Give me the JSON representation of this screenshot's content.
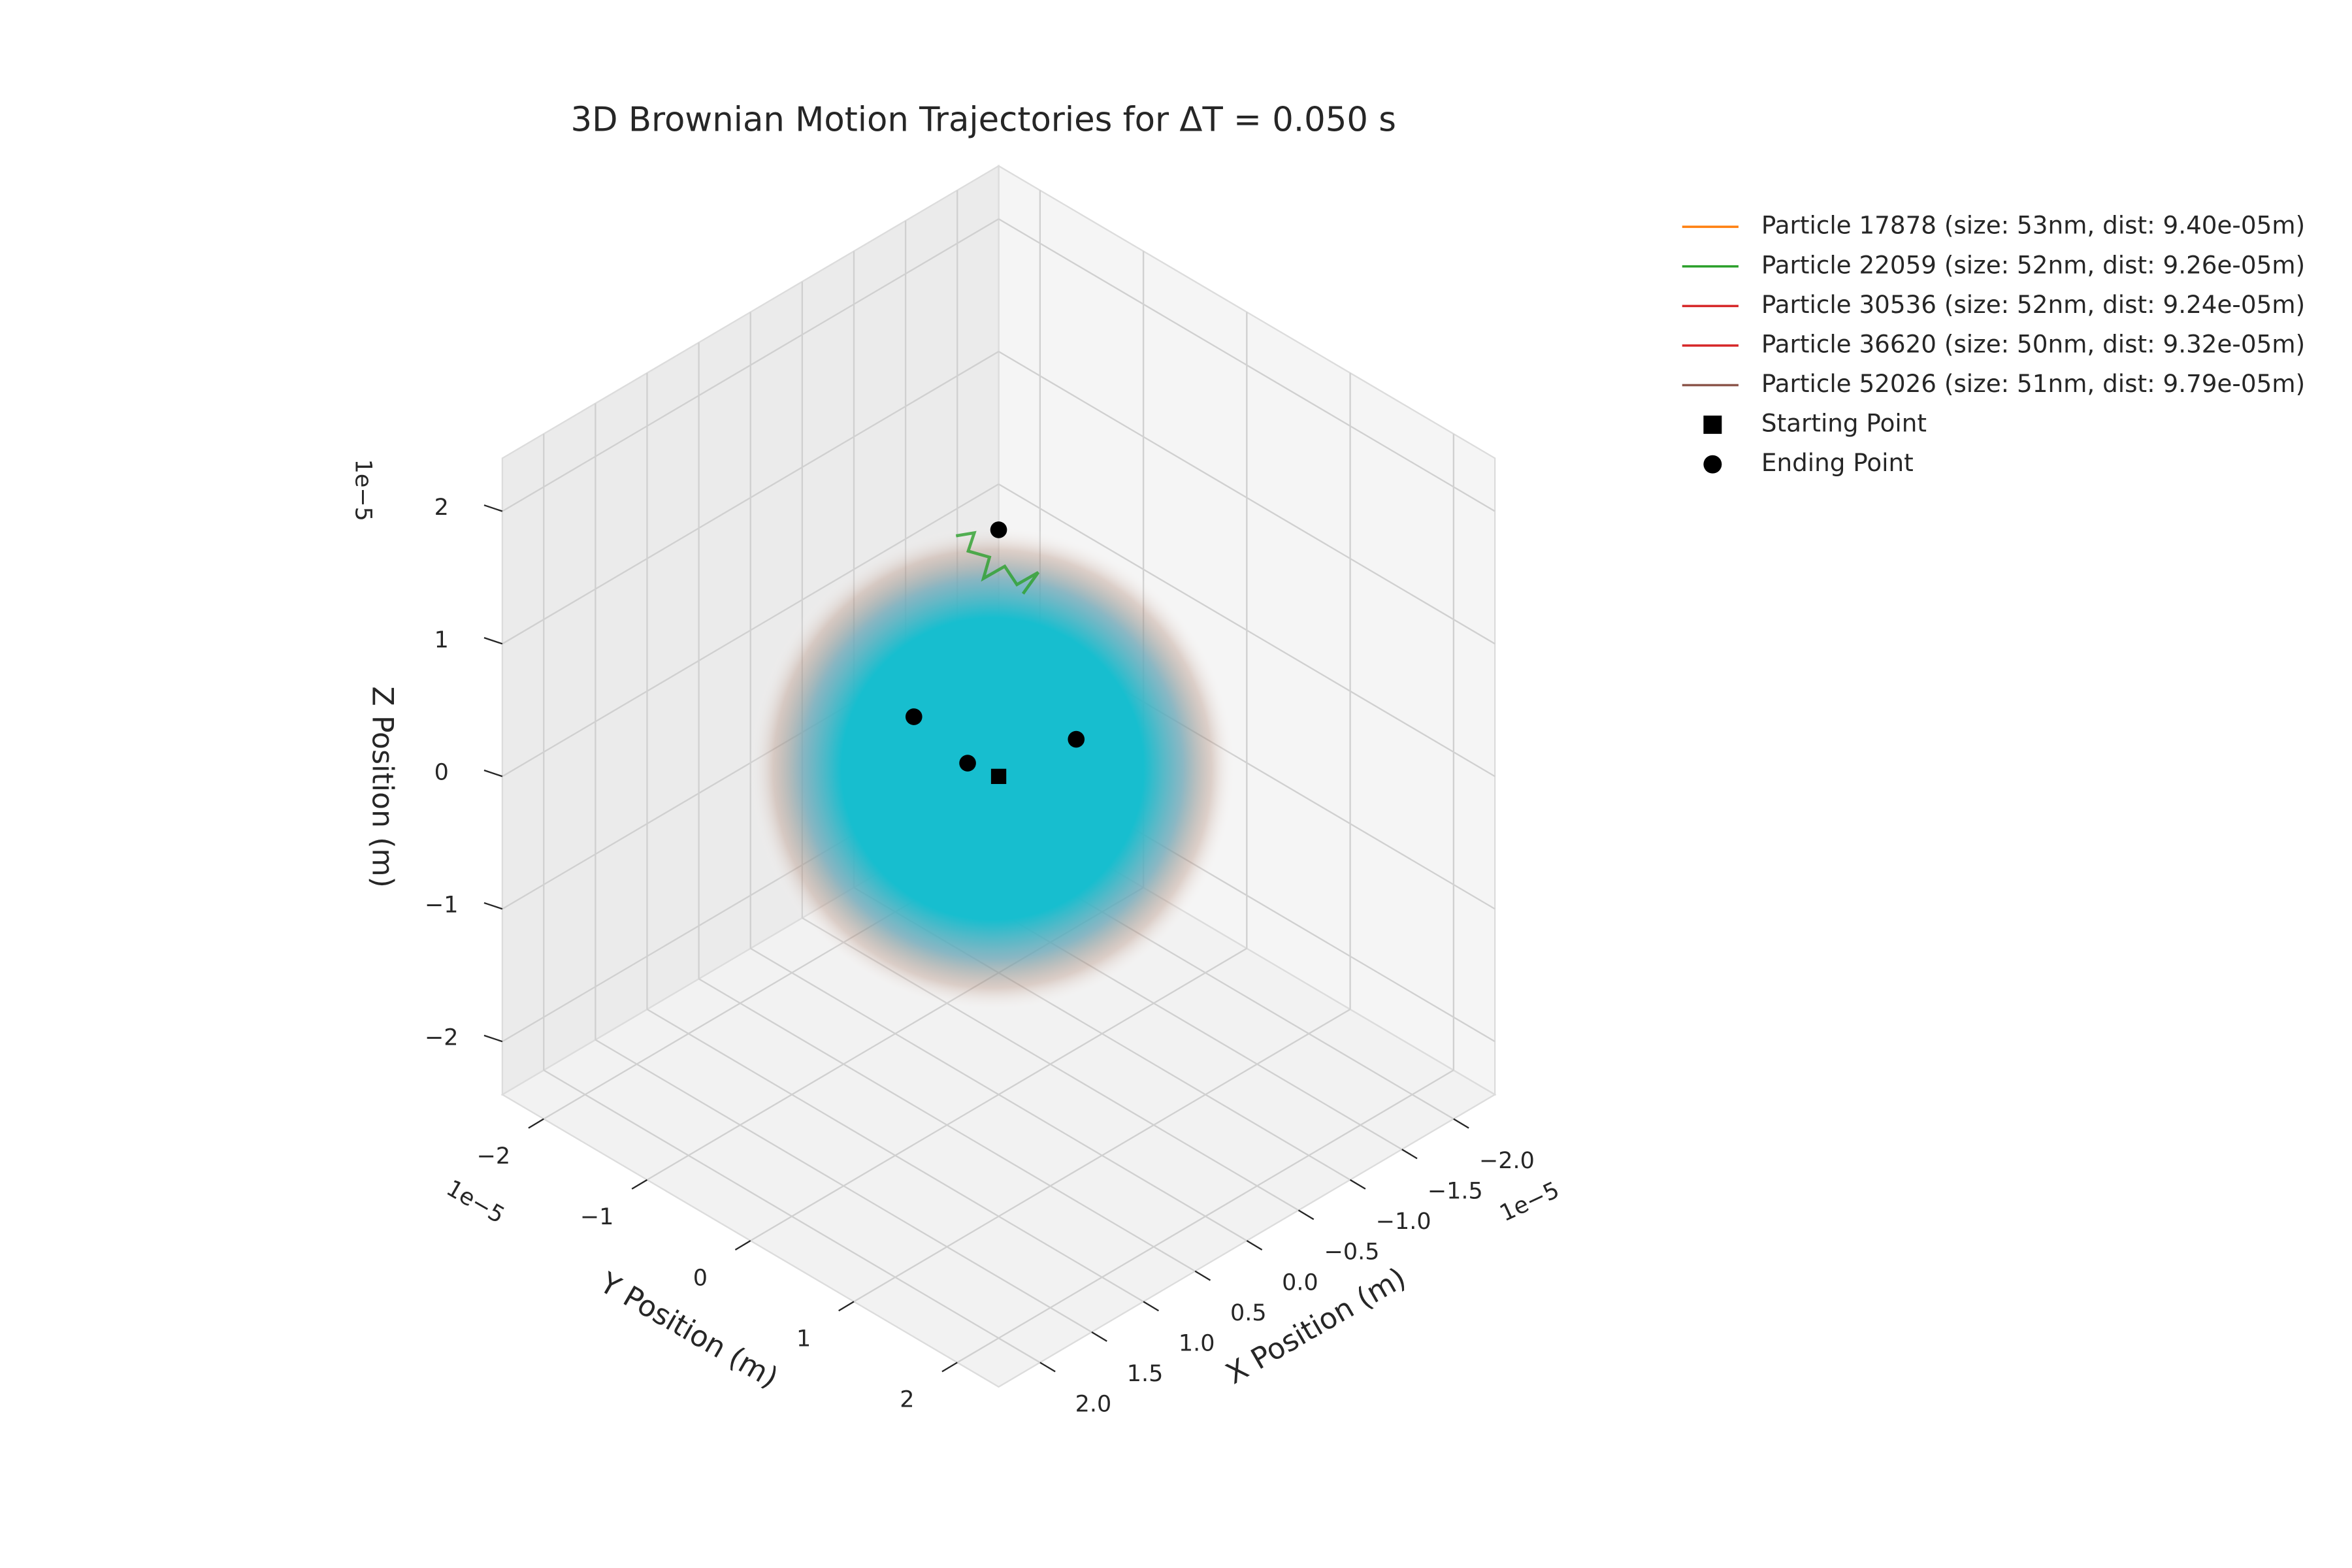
{
  "chart_data": {
    "type": "trajectory3d",
    "title": "3D Brownian Motion Trajectories for ΔT = 0.050 s",
    "xlabel": "X Position (m)",
    "ylabel": "Y Position (m)",
    "zlabel": "Z Position (m)",
    "x_offset_label": "1e−5",
    "y_offset_label": "1e−5",
    "z_offset_label": "1e−5",
    "xlim": [
      -2.4,
      2.4
    ],
    "ylim": [
      -2.4,
      2.4
    ],
    "zlim": [
      -2.4,
      2.4
    ],
    "xticks": [
      {
        "value": -2,
        "label": "−2.0"
      },
      {
        "value": -1.5,
        "label": "−1.5"
      },
      {
        "value": -1,
        "label": "−1.0"
      },
      {
        "value": -0.5,
        "label": "−0.5"
      },
      {
        "value": 0,
        "label": "0.0"
      },
      {
        "value": 0.5,
        "label": "0.5"
      },
      {
        "value": 1,
        "label": "1.0"
      },
      {
        "value": 1.5,
        "label": "1.5"
      },
      {
        "value": 2,
        "label": "2.0"
      }
    ],
    "yticks": [
      {
        "value": -2,
        "label": "−2"
      },
      {
        "value": -1,
        "label": "−1"
      },
      0,
      1,
      2
    ],
    "zticks": [
      {
        "value": -2,
        "label": "−2"
      },
      {
        "value": -1,
        "label": "−1"
      },
      0,
      1,
      2
    ],
    "grid": true,
    "series": [
      {
        "name": "Particle 17878 (size: 53nm, dist: 9.40e-05m)",
        "color": "#ff7f0e"
      },
      {
        "name": "Particle 22059 (size: 52nm, dist: 9.26e-05m)",
        "color": "#2ca02c"
      },
      {
        "name": "Particle 30536 (size: 52nm, dist: 9.24e-05m)",
        "color": "#d62728"
      },
      {
        "name": "Particle 36620 (size: 50nm, dist: 9.32e-05m)",
        "color": "#d62728"
      },
      {
        "name": "Particle 52026 (size: 51nm, dist: 9.79e-05m)",
        "color": "#8c564b"
      }
    ],
    "start_points": {
      "name": "Starting Point",
      "color": "#000000",
      "x": [
        0
      ],
      "y": [
        0
      ],
      "z": [
        0
      ]
    },
    "end_points": {
      "name": "Ending Point",
      "color": "#000000",
      "x": [
        0,
        0.41,
        0.15,
        -0.375
      ],
      "y": [
        0,
        -0.41,
        -0.15,
        0.375
      ],
      "z": [
        1.86,
        0.45,
        0.1,
        0.28
      ]
    }
  }
}
